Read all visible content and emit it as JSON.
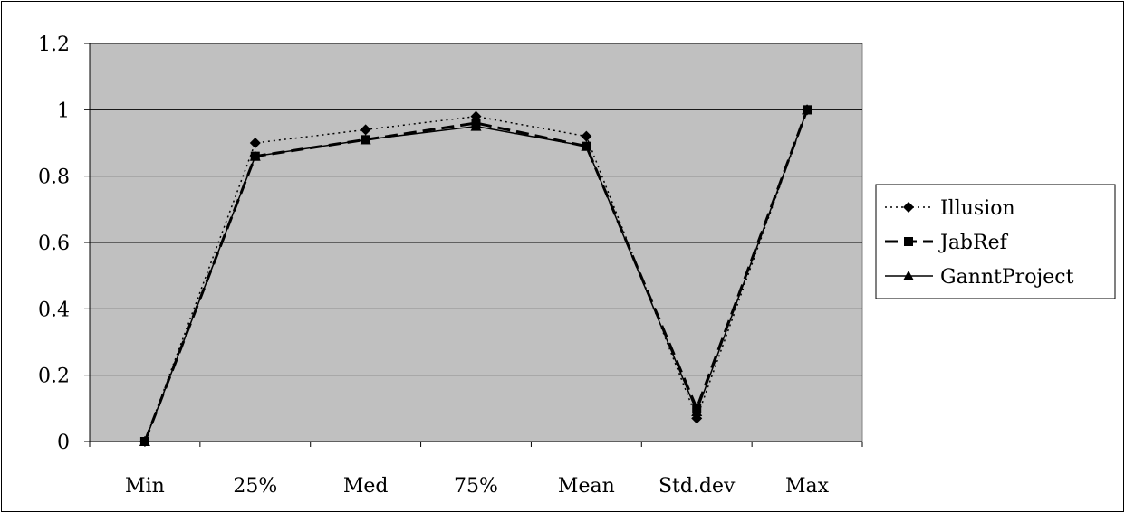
{
  "chart_data": {
    "type": "line",
    "title": "",
    "xlabel": "",
    "ylabel": "",
    "categories": [
      "Min",
      "25%",
      "Med",
      "75%",
      "Mean",
      "Std.dev",
      "Max"
    ],
    "ylim": [
      0,
      1.2
    ],
    "yticks": [
      "0",
      "0.2",
      "0.4",
      "0.6",
      "0.8",
      "1",
      "1.2"
    ],
    "grid": true,
    "legend_position": "right",
    "plot_background": "#c0c0c0",
    "series": [
      {
        "name": "Illusion",
        "values": [
          0,
          0.9,
          0.94,
          0.98,
          0.92,
          0.07,
          1.0
        ],
        "marker": "diamond",
        "line": "dotted"
      },
      {
        "name": "JabRef",
        "values": [
          0,
          0.86,
          0.91,
          0.96,
          0.89,
          0.1,
          1.0
        ],
        "marker": "square",
        "line": "dashed"
      },
      {
        "name": "GanntProject",
        "values": [
          0,
          0.86,
          0.91,
          0.95,
          0.89,
          0.09,
          1.0
        ],
        "marker": "triangle",
        "line": "solid"
      }
    ]
  }
}
